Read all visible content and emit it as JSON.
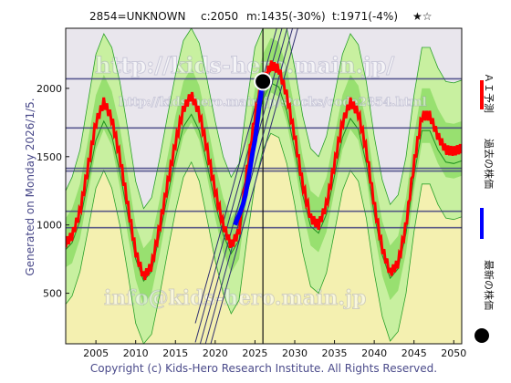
{
  "header": {
    "code": "2854=UNKNOWN",
    "current": "c:2050",
    "min_label": "m:1435(-30%)",
    "target_label": "t:1971(-4%)",
    "rating": "★☆"
  },
  "side_label": "Generated on Monday 2026/1/5.",
  "copyright": "Copyright (c) Kids-Hero Research Institute. All Rights Reserved.",
  "watermarks": [
    "http://kids-hero.main.jp/",
    "http://kids-hero.main.jp/stocks/code2854.html",
    "info@kids-hero.main.jp"
  ],
  "legend": {
    "ai": "ＡＩ予測",
    "past": "過去の株価",
    "latest": "最新の株価"
  },
  "colors": {
    "ai": "#ff0000",
    "past": "#0000ff",
    "latest": "#000000",
    "band_outer": "#c8f0a0",
    "band_inner": "#98e070",
    "band_yellow": "#f4f0b0",
    "band_lavender": "#e8e4f4",
    "guide": "#404080"
  },
  "chart_data": {
    "type": "line",
    "xlim": [
      2001.2,
      2051.0
    ],
    "ylim": [
      130,
      2440
    ],
    "xticks": [
      2005,
      2010,
      2015,
      2020,
      2025,
      2030,
      2035,
      2040,
      2045,
      2050
    ],
    "yticks": [
      500,
      1000,
      1500,
      2000
    ],
    "hlines": [
      2070,
      1710,
      1415,
      1395,
      1100,
      980
    ],
    "vline_x": 2026.0,
    "latest_point": {
      "x": 2026.0,
      "y": 2050
    },
    "past_series": {
      "name": "過去の株価",
      "x": [
        2022.5,
        2022.9,
        2023.2,
        2023.5,
        2023.8,
        2024.1,
        2024.4,
        2024.7,
        2025.0,
        2025.3,
        2025.6,
        2025.9
      ],
      "y": [
        1000,
        1060,
        1100,
        1150,
        1220,
        1320,
        1420,
        1530,
        1620,
        1750,
        1900,
        2030
      ]
    },
    "ai_series": {
      "name": "ＡＩ予測",
      "x": [
        2001.2,
        2002.0,
        2003.0,
        2004.0,
        2005.0,
        2006.0,
        2007.0,
        2008.0,
        2009.0,
        2010.0,
        2011.0,
        2012.0,
        2013.0,
        2014.0,
        2015.0,
        2016.0,
        2017.0,
        2018.0,
        2019.0,
        2020.0,
        2021.0,
        2022.0,
        2023.0,
        2024.0,
        2025.0,
        2026.0,
        2027.0,
        2028.0,
        2029.0,
        2030.0,
        2031.0,
        2032.0,
        2033.0,
        2034.0,
        2035.0,
        2036.0,
        2037.0,
        2038.0,
        2039.0,
        2040.0,
        2041.0,
        2042.0,
        2043.0,
        2044.0,
        2045.0,
        2046.0,
        2047.0,
        2048.0,
        2049.0,
        2050.0,
        2051.0
      ],
      "y": [
        870,
        920,
        1100,
        1420,
        1750,
        1900,
        1780,
        1500,
        1150,
        800,
        620,
        700,
        980,
        1300,
        1600,
        1850,
        1950,
        1820,
        1550,
        1250,
        1000,
        850,
        950,
        1400,
        1800,
        2050,
        2170,
        2140,
        1950,
        1650,
        1300,
        1050,
        1000,
        1150,
        1450,
        1750,
        1900,
        1820,
        1550,
        1150,
        830,
        650,
        720,
        1000,
        1450,
        1800,
        1800,
        1650,
        1550,
        1540,
        1560
      ]
    },
    "green_series": {
      "x": [
        2001.2,
        2002.0,
        2003.0,
        2004.0,
        2005.0,
        2006.0,
        2007.0,
        2008.0,
        2009.0,
        2010.0,
        2011.0,
        2012.0,
        2013.0,
        2014.0,
        2015.0,
        2016.0,
        2017.0,
        2018.0,
        2019.0,
        2020.0,
        2021.0,
        2022.0,
        2023.0,
        2024.0,
        2025.0,
        2026.0,
        2027.0,
        2028.0,
        2029.0,
        2030.0,
        2031.0,
        2032.0,
        2033.0,
        2034.0,
        2035.0,
        2036.0,
        2037.0,
        2038.0,
        2039.0,
        2040.0,
        2041.0,
        2042.0,
        2043.0,
        2044.0,
        2045.0,
        2046.0,
        2047.0,
        2048.0,
        2049.0,
        2050.0,
        2051.0
      ],
      "y": [
        820,
        870,
        1030,
        1320,
        1620,
        1760,
        1650,
        1390,
        1070,
        750,
        590,
        660,
        920,
        1210,
        1490,
        1720,
        1810,
        1690,
        1440,
        1160,
        930,
        790,
        890,
        1300,
        1680,
        1920,
        2040,
        2010,
        1830,
        1550,
        1220,
        990,
        940,
        1080,
        1360,
        1640,
        1780,
        1700,
        1450,
        1080,
        780,
        610,
        680,
        940,
        1360,
        1690,
        1690,
        1550,
        1460,
        1450,
        1470
      ]
    },
    "band_outer": {
      "upper": [
        1250,
        1350,
        1550,
        1900,
        2250,
        2400,
        2300,
        2050,
        1700,
        1320,
        1120,
        1200,
        1480,
        1800,
        2100,
        2350,
        2440,
        2330,
        2060,
        1760,
        1500,
        1350,
        1450,
        1900,
        2300,
        2440,
        2440,
        2440,
        2440,
        2150,
        1800,
        1560,
        1500,
        1650,
        1950,
        2250,
        2400,
        2320,
        2050,
        1650,
        1330,
        1150,
        1220,
        1500,
        1950,
        2300,
        2300,
        2150,
        2050,
        2040,
        2060
      ],
      "lower": [
        420,
        480,
        660,
        960,
        1270,
        1400,
        1270,
        1000,
        650,
        280,
        130,
        200,
        480,
        800,
        1100,
        1350,
        1460,
        1320,
        1040,
        740,
        500,
        350,
        450,
        900,
        1300,
        1550,
        1670,
        1640,
        1450,
        1150,
        800,
        550,
        500,
        650,
        950,
        1250,
        1400,
        1320,
        1050,
        650,
        330,
        150,
        220,
        500,
        950,
        1300,
        1300,
        1150,
        1050,
        1040,
        1060
      ]
    },
    "band_inner": {
      "upper": [
        1050,
        1120,
        1300,
        1620,
        1950,
        2100,
        1980,
        1720,
        1370,
        1000,
        830,
        900,
        1180,
        1500,
        1800,
        2050,
        2150,
        2020,
        1750,
        1450,
        1200,
        1050,
        1150,
        1600,
        2000,
        2250,
        2370,
        2340,
        2150,
        1850,
        1500,
        1250,
        1200,
        1350,
        1650,
        1950,
        2100,
        2020,
        1750,
        1350,
        1030,
        850,
        920,
        1200,
        1650,
        2000,
        2000,
        1850,
        1750,
        1740,
        1760
      ],
      "lower": [
        690,
        720,
        900,
        1220,
        1550,
        1700,
        1580,
        1280,
        930,
        600,
        410,
        500,
        780,
        1100,
        1400,
        1650,
        1750,
        1620,
        1350,
        1050,
        800,
        650,
        750,
        1200,
        1600,
        1850,
        1970,
        1940,
        1750,
        1450,
        1100,
        850,
        800,
        950,
        1250,
        1550,
        1700,
        1620,
        1350,
        950,
        630,
        450,
        520,
        800,
        1250,
        1600,
        1600,
        1450,
        1350,
        1340,
        1360
      ]
    },
    "trend_channel": {
      "x": [
        2017.5,
        2031.0
      ],
      "lines": [
        [
          0,
          2850
        ],
        [
          140,
          2990
        ],
        [
          -140,
          2710
        ],
        [
          280,
          3130
        ],
        [
          -280,
          2570
        ]
      ]
    }
  }
}
